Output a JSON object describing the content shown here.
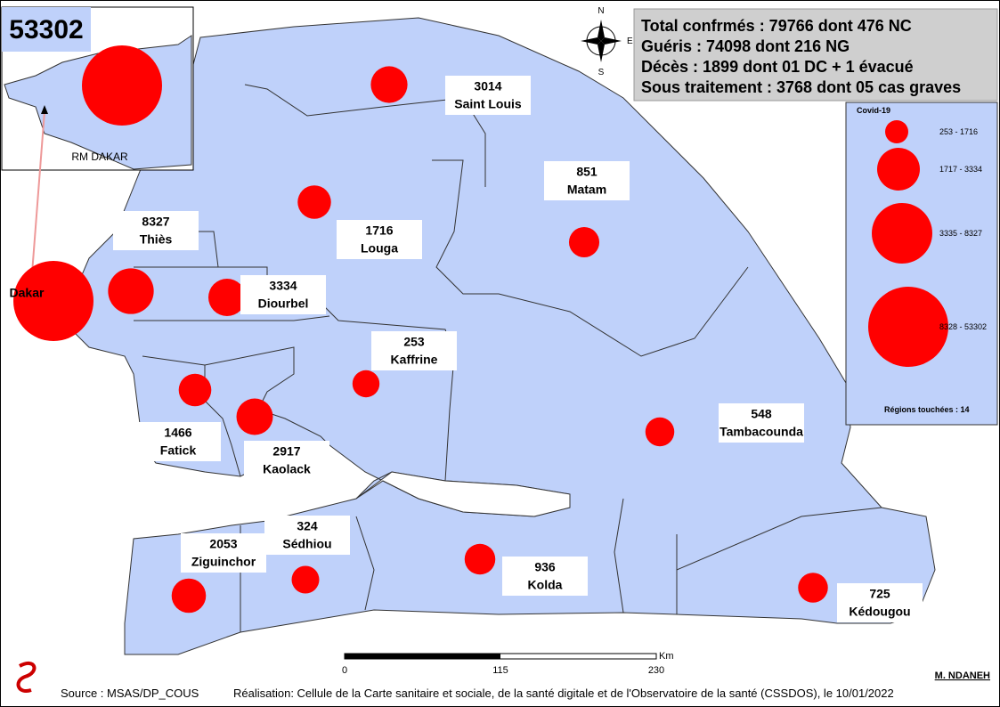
{
  "title_count": "53302",
  "summary": [
    "Total confrmés : 79766 dont 476 NC",
    "Guéris : 74098 dont 216 NG",
    "Décès : 1899 dont 01 DC + 1 évacué",
    "Sous traitement : 3768 dont 05 cas graves"
  ],
  "inset_label": "RM DAKAR",
  "compass": {
    "n": "N",
    "e": "E",
    "s": "S"
  },
  "regions": [
    {
      "name": "Dakar",
      "cases": 53302
    },
    {
      "name": "Thiès",
      "cases": 8327
    },
    {
      "name": "Diourbel",
      "cases": 3334
    },
    {
      "name": "Saint Louis",
      "cases": 3014
    },
    {
      "name": "Louga",
      "cases": 1716
    },
    {
      "name": "Matam",
      "cases": 851
    },
    {
      "name": "Kaffrine",
      "cases": 253
    },
    {
      "name": "Fatick",
      "cases": 1466
    },
    {
      "name": "Kaolack",
      "cases": 2917
    },
    {
      "name": "Tambacounda",
      "cases": 548
    },
    {
      "name": "Sédhiou",
      "cases": 324
    },
    {
      "name": "Ziguinchor",
      "cases": 2053
    },
    {
      "name": "Kolda",
      "cases": 936
    },
    {
      "name": "Kédougou",
      "cases": 725
    }
  ],
  "legend": {
    "title": "Covid-19",
    "classes": [
      "253 - 1716",
      "1717 - 3334",
      "3335 - 8327",
      "8328 - 53302"
    ],
    "footer": "Régions touchées : 14"
  },
  "scale_bar": {
    "ticks": [
      0,
      115,
      230
    ],
    "unit": "Km"
  },
  "author": "M. NDANEH",
  "source": "Source : MSAS/DP_COUS",
  "credit": "Réalisation: Cellule de la Carte sanitaire et sociale, de la santé digitale et de l'Observatoire de la santé (CSSDOS), le 10/01/2022"
}
